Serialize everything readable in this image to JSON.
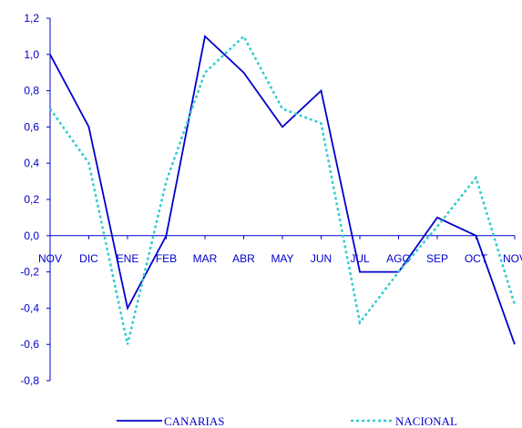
{
  "chart_data": {
    "type": "line",
    "categories": [
      "NOV",
      "DIC",
      "ENE",
      "FEB",
      "MAR",
      "ABR",
      "MAY",
      "JUN",
      "JUL",
      "AGO",
      "SEP",
      "OCT",
      "NOV"
    ],
    "series": [
      {
        "name": "CANARIAS",
        "color": "#0000cc",
        "dash": "solid",
        "values": [
          1.0,
          0.6,
          -0.4,
          0.0,
          1.1,
          0.9,
          0.6,
          0.8,
          -0.2,
          -0.2,
          0.1,
          0.0,
          -0.6
        ]
      },
      {
        "name": "NACIONAL",
        "color": "#33cccc",
        "dash": "dotted",
        "values": [
          0.7,
          0.4,
          -0.6,
          0.3,
          0.9,
          1.1,
          0.7,
          0.62,
          -0.48,
          -0.2,
          0.05,
          0.32,
          -0.38
        ]
      }
    ],
    "yticks": [
      "1,2",
      "1,0",
      "0,8",
      "0,6",
      "0,4",
      "0,2",
      "0,0",
      "-0,2",
      "-0,4",
      "-0,6",
      "-0,8"
    ],
    "ylim": [
      -0.8,
      1.2
    ],
    "grid": false,
    "legend_position": "bottom"
  }
}
